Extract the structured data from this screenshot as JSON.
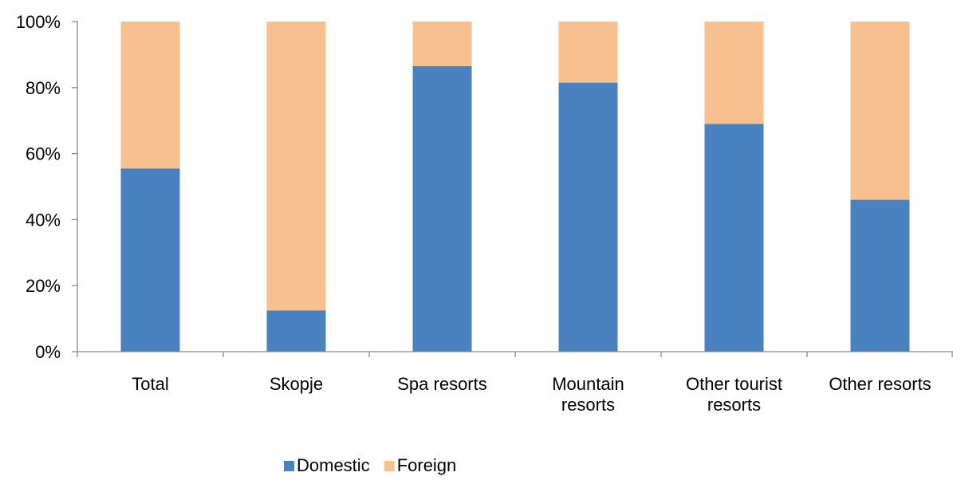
{
  "chart_data": {
    "type": "bar",
    "stacked": true,
    "percent_stacked": true,
    "categories": [
      "Total",
      "Skopje",
      "Spa resorts",
      "Mountain\nresorts",
      "Other tourist\nresorts",
      "Other resorts"
    ],
    "series": [
      {
        "name": "Domestic",
        "color": "#4a81c0",
        "values": [
          55.5,
          12.5,
          86.5,
          81.5,
          69,
          46
        ]
      },
      {
        "name": "Foreign",
        "color": "#f8c08e",
        "values": [
          44.5,
          87.5,
          13.5,
          18.5,
          31,
          54
        ]
      }
    ],
    "yticks": [
      "0%",
      "20%",
      "40%",
      "60%",
      "80%",
      "100%"
    ],
    "ylim": [
      0,
      100
    ],
    "grid": false,
    "legend_position": "bottom"
  }
}
